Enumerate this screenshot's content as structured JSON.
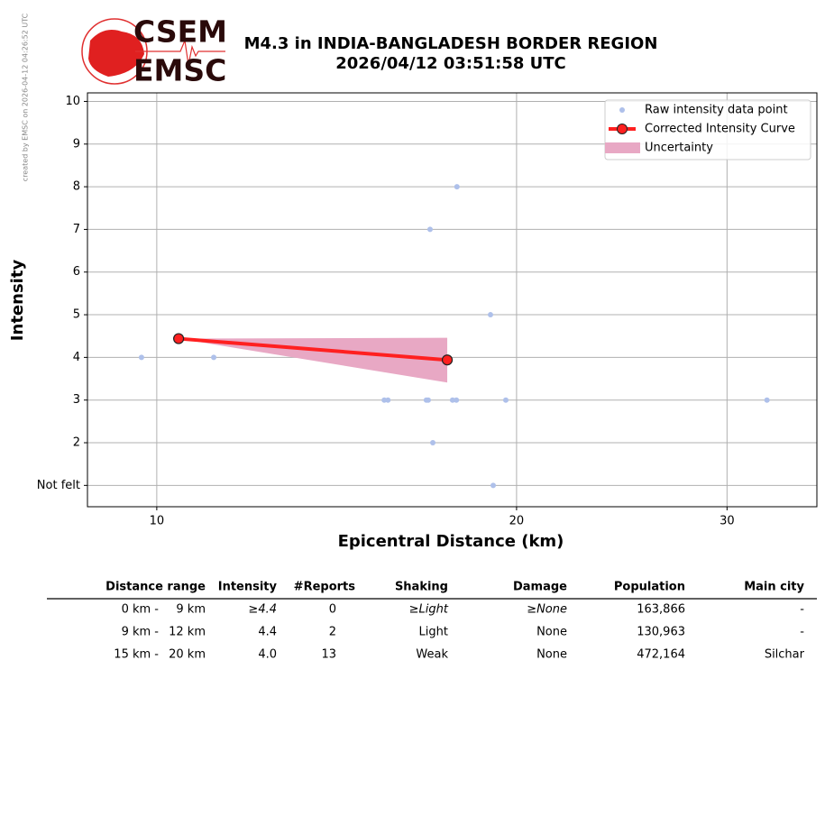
{
  "credit": "created by EMSC on 2026-04-12 04:26:52 UTC",
  "logo": {
    "top": "CSEM",
    "bottom": "EMSC"
  },
  "chart_data": {
    "type": "scatter",
    "title": "M4.3 in INDIA-BANGLADESH BORDER REGION",
    "subtitle": "2026/04/12 03:51:58 UTC",
    "x_label": "Epicentral Distance (km)",
    "y_label": "Intensity",
    "xscale": "log",
    "grid": true,
    "legend": "upper right",
    "xlim": [
      8.75,
      35.67
    ],
    "xticks": [
      10,
      20,
      30
    ],
    "ylim": [
      0.5,
      10.2
    ],
    "yticks": [
      {
        "value": 1,
        "label": "Not felt"
      },
      2,
      3,
      4,
      5,
      6,
      7,
      8,
      9,
      10
    ],
    "series": [
      {
        "name": "Raw intensity data point",
        "type": "scatter",
        "color": "#aec0ea",
        "x": [
          9.71,
          11.16,
          17.83,
          16.93,
          19.02,
          15.5,
          15.61,
          16.81,
          16.87,
          17.68,
          17.81,
          19.59,
          32.4,
          17.02,
          19.12
        ],
        "values": [
          4,
          4,
          8,
          7,
          5,
          3,
          3,
          3,
          3,
          3,
          3,
          3,
          3,
          2,
          1
        ]
      },
      {
        "name": "Corrected Intensity Curve",
        "type": "line",
        "color": "#ff2020",
        "x": [
          10.43,
          17.5
        ],
        "values": [
          4.44,
          3.94
        ]
      },
      {
        "name": "Uncertainty",
        "type": "band",
        "color": "#e8a8c4",
        "x": [
          10.43,
          17.5
        ],
        "upper": [
          4.44,
          4.46
        ],
        "lower": [
          4.44,
          3.41
        ]
      }
    ]
  },
  "table": {
    "header": [
      "Distance range",
      "Intensity",
      "#Reports",
      "Shaking",
      "Damage",
      "Population",
      "Main city"
    ],
    "rows": [
      [
        "0 km -",
        "9 km",
        "≥4.4",
        "0",
        "≥Light",
        "≥None",
        "163,866",
        "-"
      ],
      [
        "9 km -",
        "12 km",
        "4.4",
        "2",
        "Light",
        "None",
        "130,963",
        "-"
      ],
      [
        "15 km -",
        "20 km",
        "4.0",
        "13",
        "Weak",
        "None",
        "472,164",
        "Silchar"
      ]
    ]
  }
}
